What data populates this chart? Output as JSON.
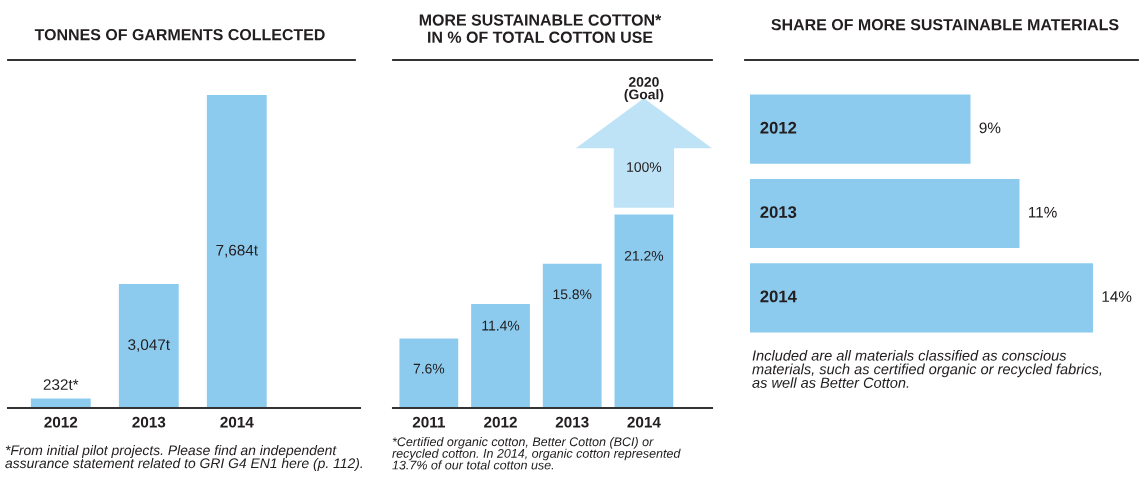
{
  "chart_data": [
    {
      "type": "bar",
      "title": "TONNES OF GARMENTS COLLECTED",
      "categories": [
        "2012",
        "2013",
        "2014"
      ],
      "values": [
        232,
        3047,
        7684
      ],
      "value_labels": [
        "232t*",
        "3,047t",
        "7,684t"
      ],
      "color": "#8ccbee",
      "annotations": [
        "*From initial pilot projects. Please find an independent\nassurance statement related to GRI G4 EN1 here (p. 112)."
      ]
    },
    {
      "type": "bar",
      "title": "MORE SUSTAINABLE COTTON*\nIN % OF TOTAL COTTON USE",
      "categories": [
        "2011",
        "2012",
        "2013",
        "2014"
      ],
      "values": [
        7.6,
        11.4,
        15.8,
        21.2
      ],
      "value_labels": [
        "7.6%",
        "11.4%",
        "15.8%",
        "21.2%"
      ],
      "color": "#8ccbee",
      "annotations": [
        "2020\n(Goal)",
        "100%",
        "*Certified organic cotton, Better Cotton (BCI) or\nrecycled cotton. In 2014, organic cotton represented\n13.7% of our total cotton use."
      ]
    },
    {
      "type": "bar",
      "orientation": "horizontal",
      "title": "SHARE OF MORE SUSTAINABLE MATERIALS",
      "categories": [
        "2012",
        "2013",
        "2014"
      ],
      "values": [
        9,
        11,
        14
      ],
      "value_labels": [
        "9%",
        "11%",
        "14%"
      ],
      "color": "#8ccbee",
      "annotations": [
        "Included are all materials classified as conscious\nmaterials, such as certified organic or recycled fabrics,\nas well as Better Cotton."
      ]
    }
  ]
}
